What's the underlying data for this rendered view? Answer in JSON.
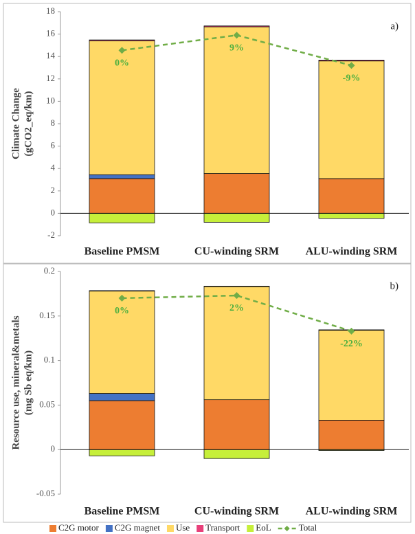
{
  "chart_data": [
    {
      "type": "bar",
      "stacked": true,
      "ylabel": [
        "Climate Change",
        "(gCO2_eq/km)"
      ],
      "annotation": "a)",
      "categories": [
        "Baseline PMSM",
        "CU-winding SRM",
        "ALU-winding SRM"
      ],
      "ylim": [
        -2,
        18
      ],
      "yticks": [
        -2,
        0,
        2,
        4,
        6,
        8,
        10,
        12,
        14,
        16,
        18
      ],
      "series": [
        {
          "name": "C2G motor",
          "color": "#ed7d31",
          "values": [
            3.1,
            3.55,
            3.1
          ]
        },
        {
          "name": "C2G magnet",
          "color": "#4472c4",
          "values": [
            0.35,
            0,
            0
          ]
        },
        {
          "name": "Use",
          "color": "#ffd966",
          "values": [
            11.95,
            13.1,
            10.5
          ]
        },
        {
          "name": "Transport",
          "color": "#e8407a",
          "values": [
            0.08,
            0.08,
            0.08
          ]
        },
        {
          "name": "EoL",
          "color": "#c6ef3a",
          "values": [
            -0.85,
            -0.8,
            -0.45
          ]
        },
        {
          "name": "Total",
          "color": "#70ad47",
          "type": "line",
          "values": [
            14.55,
            15.9,
            13.2
          ],
          "value_labels": [
            "0%",
            "9%",
            "-9%"
          ]
        }
      ]
    },
    {
      "type": "bar",
      "stacked": true,
      "ylabel": [
        "Resource use, mineral&metals",
        "(mg Sb eq/km)"
      ],
      "annotation": "b)",
      "categories": [
        "Baseline PMSM",
        "CU-winding SRM",
        "ALU-winding SRM"
      ],
      "ylim": [
        -0.05,
        0.2
      ],
      "yticks": [
        -0.05,
        0,
        0.05,
        0.1,
        0.15,
        0.2
      ],
      "series": [
        {
          "color": "#ed7d31",
          "values": [
            0.055,
            0.056,
            0.033
          ]
        },
        {
          "color": "#4472c4",
          "values": [
            0.008,
            0,
            0
          ]
        },
        {
          "color": "#ffd966",
          "values": [
            0.115,
            0.127,
            0.101
          ]
        },
        {
          "color": "#e8407a",
          "values": [
            0.0005,
            0.0005,
            0.0005
          ]
        },
        {
          "color": "#c6ef3a",
          "values": [
            -0.007,
            -0.01,
            -0.001
          ]
        },
        {
          "color": "#70ad47",
          "type": "line",
          "values": [
            0.17,
            0.173,
            0.133
          ],
          "value_labels": [
            "0%",
            "2%",
            "-22%"
          ]
        }
      ]
    }
  ]
}
